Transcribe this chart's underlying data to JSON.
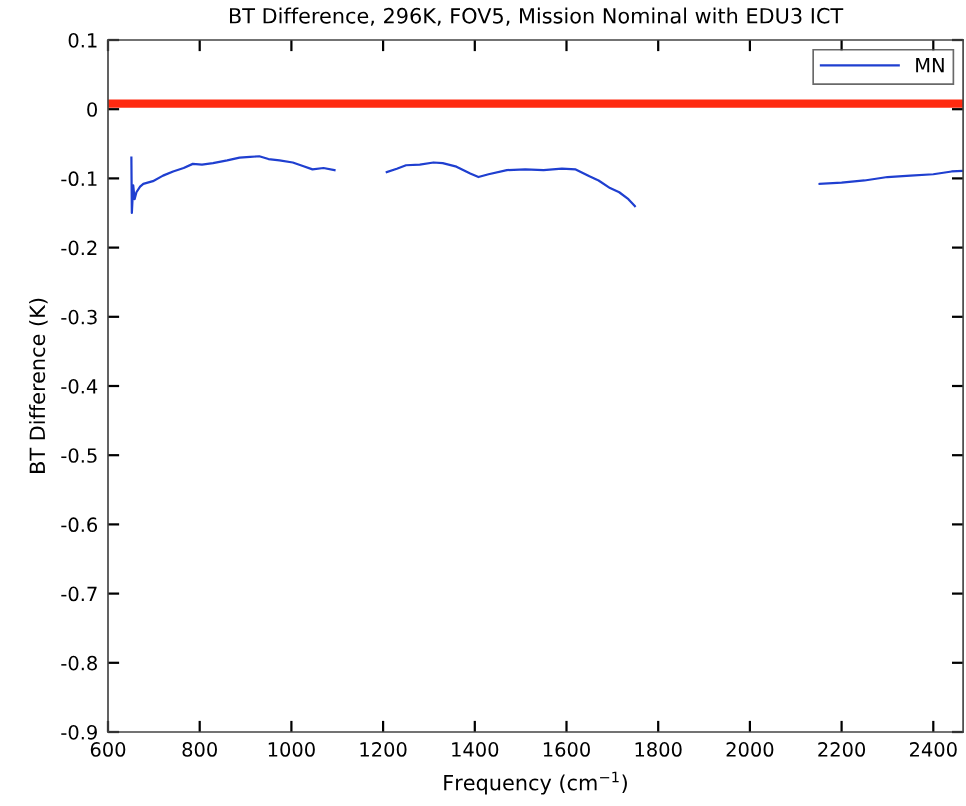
{
  "chart_data": {
    "type": "line",
    "title": "BT Difference, 296K, FOV5, Mission Nominal with EDU3 ICT",
    "xlabel": "Frequency (cm$^{−1}$)",
    "ylabel": "BT Difference (K)",
    "x": [
      651,
      652,
      655,
      658,
      662,
      670,
      677,
      698,
      720,
      742,
      765,
      785,
      805,
      829,
      860,
      887,
      910,
      930,
      950,
      974,
      1003,
      1025,
      1046,
      1070,
      1094,
      1150,
      1208,
      1230,
      1250,
      1280,
      1310,
      1330,
      1360,
      1390,
      1408,
      1430,
      1470,
      1510,
      1550,
      1590,
      1620,
      1650,
      1670,
      1695,
      1715,
      1735,
      1749,
      1950,
      2152,
      2200,
      2250,
      2300,
      2350,
      2400,
      2440,
      2465
    ],
    "series": [
      {
        "name": "MN",
        "color": "#1f3fd0",
        "values": [
          -0.07,
          -0.15,
          -0.11,
          -0.13,
          -0.12,
          -0.112,
          -0.108,
          -0.104,
          -0.096,
          -0.09,
          -0.085,
          -0.079,
          -0.08,
          -0.078,
          -0.074,
          -0.07,
          -0.069,
          -0.068,
          -0.072,
          -0.074,
          -0.077,
          -0.082,
          -0.087,
          -0.085,
          -0.088,
          null,
          -0.091,
          -0.086,
          -0.081,
          -0.08,
          -0.077,
          -0.078,
          -0.083,
          -0.093,
          -0.098,
          -0.094,
          -0.088,
          -0.087,
          -0.088,
          -0.086,
          -0.087,
          -0.097,
          -0.103,
          -0.114,
          -0.12,
          -0.13,
          -0.14,
          null,
          -0.108,
          -0.106,
          -0.103,
          -0.098,
          -0.096,
          -0.094,
          -0.09,
          -0.089
        ]
      }
    ],
    "xlim": [
      600,
      2465
    ],
    "ylim": [
      -0.9,
      0.1
    ],
    "xticks": [
      600,
      800,
      1000,
      1200,
      1400,
      1600,
      1800,
      2000,
      2200,
      2400
    ],
    "yticks": [
      -0.9,
      -0.8,
      -0.7,
      -0.6,
      -0.5,
      -0.4,
      -0.3,
      -0.2,
      -0.1,
      0,
      0.1
    ],
    "ref_lines": [
      {
        "axis": "y",
        "value": 0.008,
        "color": "#ff2a10"
      }
    ],
    "legend": "top right",
    "grid": false,
    "marker": "none",
    "line_style": "solid"
  }
}
